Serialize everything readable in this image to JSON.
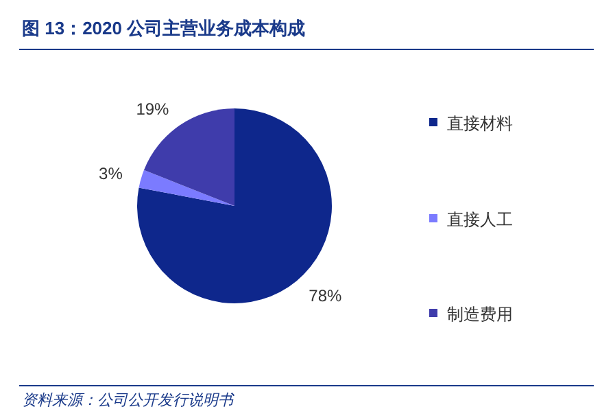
{
  "chart_data": {
    "type": "pie",
    "title": "图 13：2020 公司主营业务成本构成",
    "categories": [
      "直接材料",
      "直接人工",
      "制造费用"
    ],
    "values": [
      78,
      3,
      19
    ],
    "colors": [
      "#0e278c",
      "#7b7bff",
      "#3f3cab"
    ],
    "value_labels": [
      "78%",
      "3%",
      "19%"
    ],
    "legend": "right",
    "annotations": [
      "资料来源：公司公开发行说明书"
    ]
  }
}
